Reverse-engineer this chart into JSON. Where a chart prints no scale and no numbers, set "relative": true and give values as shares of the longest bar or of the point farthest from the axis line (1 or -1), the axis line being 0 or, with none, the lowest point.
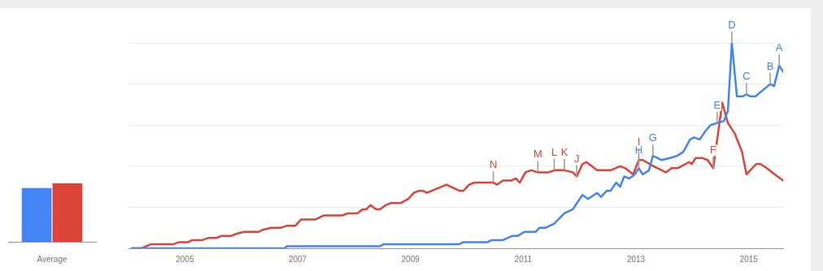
{
  "chart_data": [
    {
      "type": "bar",
      "categories": [
        "Average"
      ],
      "relative": true,
      "series": [
        {
          "color": "#4285f4",
          "values": [
            0.92
          ]
        },
        {
          "color": "#db4437",
          "values": [
            1
          ]
        }
      ]
    },
    {
      "type": "line",
      "relative": true,
      "grid": "y",
      "xlim": [
        2004,
        2015.61
      ],
      "xticks": [
        2005,
        2007,
        2009,
        2011,
        2013,
        2015
      ],
      "series": [
        {
          "color": "#4285f4",
          "x": [
            2004.06,
            2006.77,
            2006.81,
            2008.46,
            2008.53,
            2009.87,
            2009.94,
            2010.37,
            2010.44,
            2010.64,
            2010.8,
            2010.9,
            2011.02,
            2011.22,
            2011.29,
            2011.4,
            2011.55,
            2011.73,
            2011.88,
            2012.05,
            2012.15,
            2012.31,
            2012.38,
            2012.48,
            2012.55,
            2012.65,
            2012.72,
            2012.79,
            2012.88,
            2012.98,
            2013.05,
            2013.12,
            2013.23,
            2013.3,
            2013.45,
            2013.6,
            2013.73,
            2013.84,
            2013.96,
            2014.03,
            2014.13,
            2014.23,
            2014.32,
            2014.44,
            2014.56,
            2014.63,
            2014.7,
            2014.79,
            2014.89,
            2014.96,
            2015.03,
            2015.12,
            2015.38,
            2015.45,
            2015.54,
            2015.61
          ],
          "values": [
            0,
            0,
            0.01,
            0.01,
            0.02,
            0.02,
            0.03,
            0.03,
            0.04,
            0.04,
            0.06,
            0.06,
            0.08,
            0.08,
            0.1,
            0.1,
            0.12,
            0.17,
            0.19,
            0.26,
            0.24,
            0.27,
            0.25,
            0.28,
            0.28,
            0.32,
            0.3,
            0.35,
            0.34,
            0.36,
            0.39,
            0.36,
            0.38,
            0.45,
            0.43,
            0.44,
            0.45,
            0.47,
            0.53,
            0.54,
            0.53,
            0.57,
            0.6,
            0.61,
            0.62,
            0.67,
            1,
            0.74,
            0.74,
            0.75,
            0.74,
            0.74,
            0.8,
            0.79,
            0.89,
            0.86
          ]
        },
        {
          "color": "#db4437",
          "x": [
            2004.06,
            2004.23,
            2004.4,
            2004.8,
            2004.9,
            2005.06,
            2005.13,
            2005.31,
            2005.41,
            2005.56,
            2005.64,
            2005.81,
            2005.91,
            2006.05,
            2006.31,
            2006.38,
            2006.53,
            2006.71,
            2006.81,
            2006.96,
            2007.06,
            2007.31,
            2007.46,
            2007.79,
            2007.89,
            2008.06,
            2008.15,
            2008.22,
            2008.29,
            2008.39,
            2008.46,
            2008.56,
            2008.65,
            2008.82,
            2008.96,
            2009.06,
            2009.15,
            2009.22,
            2009.29,
            2009.64,
            2009.87,
            2009.94,
            2010.04,
            2010.14,
            2010.47,
            2010.54,
            2010.64,
            2010.79,
            2010.87,
            2010.94,
            2011.04,
            2011.14,
            2011.26,
            2011.45,
            2011.55,
            2011.73,
            2011.88,
            2011.95,
            2012.05,
            2012.12,
            2012.31,
            2012.55,
            2012.72,
            2012.81,
            2012.95,
            2013.05,
            2013.12,
            2013.31,
            2013.53,
            2013.63,
            2013.74,
            2013.94,
            2013.99,
            2014.06,
            2014.17,
            2014.27,
            2014.37,
            2014.53,
            2014.63,
            2014.75,
            2014.88,
            2014.96,
            2015.13,
            2015.21,
            2015.32,
            2015.46,
            2015.61
          ],
          "values": [
            0,
            0,
            0.02,
            0.02,
            0.03,
            0.03,
            0.04,
            0.04,
            0.05,
            0.05,
            0.06,
            0.06,
            0.07,
            0.08,
            0.08,
            0.09,
            0.1,
            0.1,
            0.11,
            0.11,
            0.14,
            0.14,
            0.16,
            0.16,
            0.17,
            0.17,
            0.19,
            0.19,
            0.21,
            0.19,
            0.19,
            0.21,
            0.22,
            0.22,
            0.24,
            0.27,
            0.28,
            0.28,
            0.27,
            0.31,
            0.28,
            0.28,
            0.31,
            0.32,
            0.32,
            0.31,
            0.33,
            0.33,
            0.34,
            0.32,
            0.37,
            0.38,
            0.37,
            0.37,
            0.38,
            0.38,
            0.37,
            0.35,
            0.41,
            0.42,
            0.38,
            0.38,
            0.4,
            0.39,
            0.36,
            0.43,
            0.43,
            0.4,
            0.37,
            0.39,
            0.39,
            0.42,
            0.41,
            0.44,
            0.44,
            0.43,
            0.39,
            0.71,
            0.61,
            0.56,
            0.47,
            0.36,
            0.41,
            0.41,
            0.39,
            0.36,
            0.33
          ]
        }
      ],
      "annotations": [
        {
          "text": "A",
          "x": 2015.54,
          "y": 0.89
        },
        {
          "text": "B",
          "x": 2015.38,
          "y": 0.8
        },
        {
          "text": "C",
          "x": 2014.96,
          "y": 0.75
        },
        {
          "text": "D",
          "x": 2014.7,
          "y": 1
        },
        {
          "text": "E",
          "x": 2014.44,
          "y": 0.61
        },
        {
          "text": "F",
          "x": 2014.37,
          "y": 0.39
        },
        {
          "text": "G",
          "x": 2013.3,
          "y": 0.45
        },
        {
          "text": "H",
          "x": 2013.05,
          "y": 0.39
        },
        {
          "text": "I",
          "x": 2013.05,
          "y": 0.43
        },
        {
          "text": "J",
          "x": 2011.95,
          "y": 0.35
        },
        {
          "text": "K",
          "x": 2011.73,
          "y": 0.38
        },
        {
          "text": "L",
          "x": 2011.55,
          "y": 0.38
        },
        {
          "text": "M",
          "x": 2011.26,
          "y": 0.37
        },
        {
          "text": "N",
          "x": 2010.47,
          "y": 0.32
        }
      ]
    }
  ]
}
